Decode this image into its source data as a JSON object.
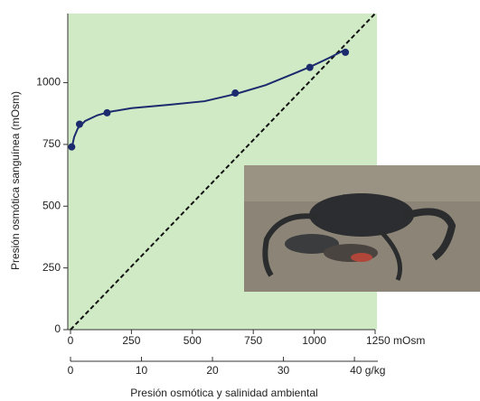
{
  "chart_data": {
    "type": "scatter",
    "y_label": "Presión osmótica sanguínea (mOsm)",
    "x_label": "Presión osmótica y salinidad ambiental",
    "x": [
      5,
      37,
      150,
      676,
      982,
      1128
    ],
    "values": [
      740,
      832,
      878,
      958,
      1062,
      1123
    ],
    "color": "#1c2a6e",
    "plot_background": "#cfeac4",
    "curve": {
      "x": [
        5,
        15,
        30,
        60,
        110,
        160,
        250,
        400,
        550,
        680,
        800,
        900,
        985,
        1060,
        1130
      ],
      "values": [
        735,
        780,
        815,
        845,
        868,
        882,
        897,
        910,
        925,
        955,
        990,
        1030,
        1065,
        1100,
        1135
      ],
      "color": "#1c2a6e"
    },
    "diagonal": {
      "x": [
        0,
        1250
      ],
      "values": [
        0,
        1280
      ],
      "color": "#111"
    },
    "xlim": [
      0,
      1250
    ],
    "ylim": [
      0,
      1280
    ],
    "xticks": [
      0,
      250,
      500,
      750,
      1000,
      {
        "value": 1250,
        "label": "1250 mOsm"
      }
    ],
    "yticks": [
      0,
      250,
      500,
      750,
      1000
    ],
    "x2lim": [
      0,
      43.3
    ],
    "x2ticks": [
      0,
      10,
      20,
      30,
      {
        "value": 40,
        "label": "40 g/kg"
      }
    ]
  }
}
